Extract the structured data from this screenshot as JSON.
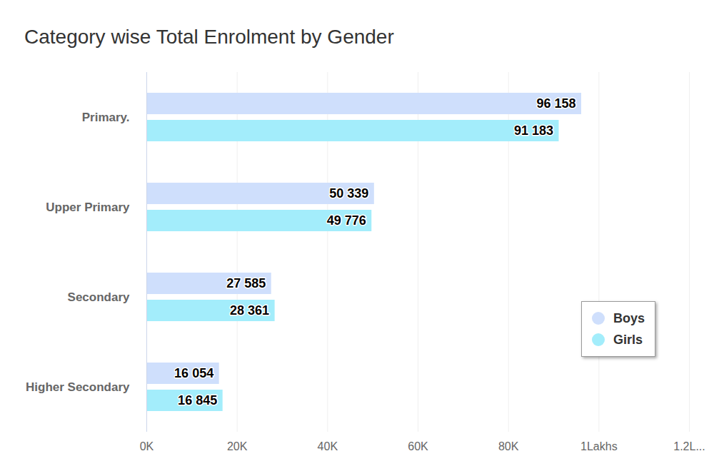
{
  "chart_data": {
    "type": "bar",
    "title": "Category wise Total Enrolment by Gender",
    "orientation": "horizontal",
    "categories": [
      "Primary.",
      "Upper Primary",
      "Secondary",
      "Higher Secondary"
    ],
    "series": [
      {
        "name": "Boys",
        "color": "#cfdffc",
        "values": [
          96158,
          50339,
          27585,
          16054
        ],
        "value_labels": [
          "96 158",
          "50 339",
          "27 585",
          "16 054"
        ]
      },
      {
        "name": "Girls",
        "color": "#a3edfb",
        "values": [
          91183,
          49776,
          28361,
          16845
        ],
        "value_labels": [
          "91 183",
          "49 776",
          "28 361",
          "16 845"
        ]
      }
    ],
    "xlim": [
      0,
      120000
    ],
    "xticks": [
      {
        "value": 0,
        "label": "0K"
      },
      {
        "value": 20000,
        "label": "20K"
      },
      {
        "value": 40000,
        "label": "40K"
      },
      {
        "value": 60000,
        "label": "60K"
      },
      {
        "value": 80000,
        "label": "80K"
      },
      {
        "value": 100000,
        "label": "1Lakhs"
      },
      {
        "value": 120000,
        "label": "1.2L..."
      }
    ],
    "grid": true,
    "data_labels": true,
    "legend": "bottom-right"
  }
}
